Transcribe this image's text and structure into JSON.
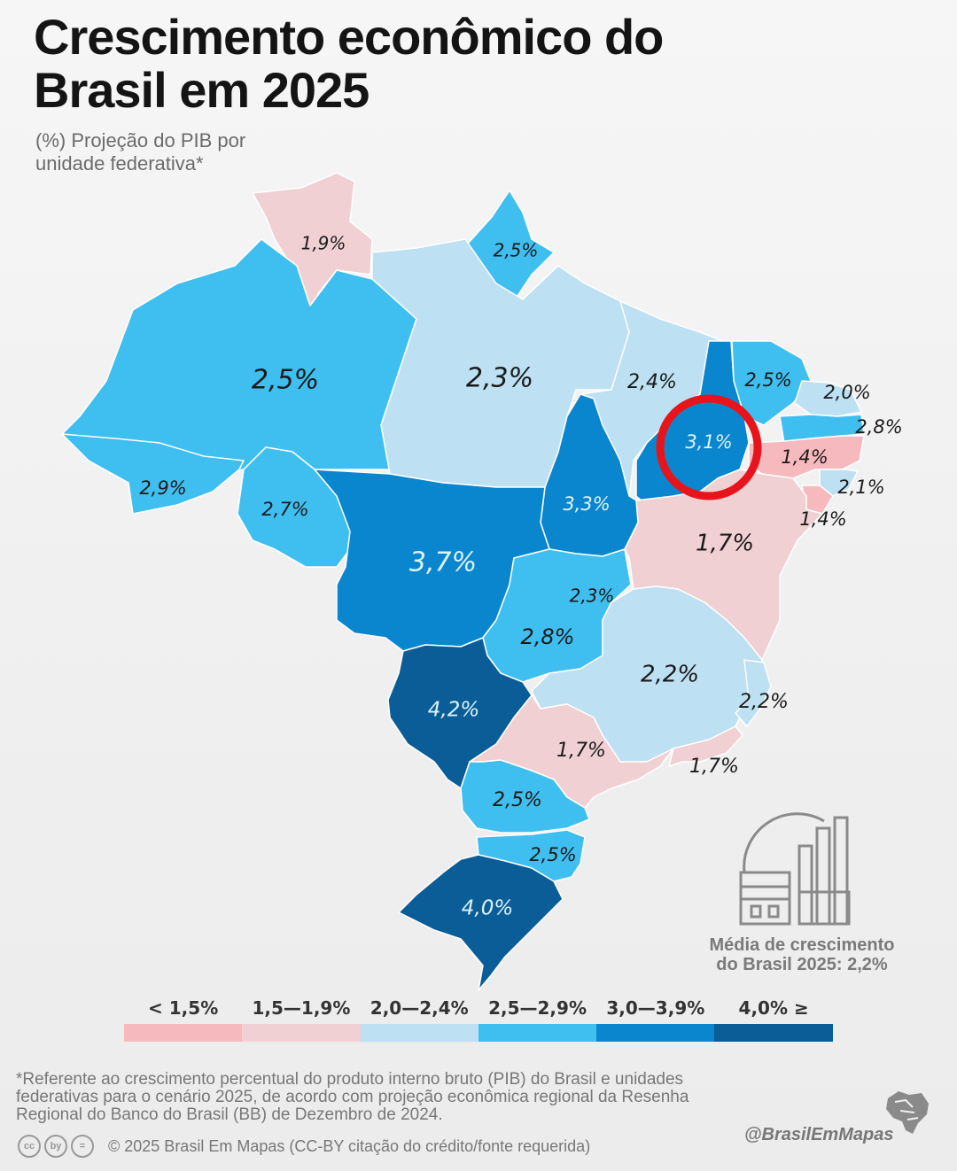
{
  "title": "Crescimento econômico do Brasil em 2025",
  "subtitle": "(%) Projeção do PIB por unidade federativa*",
  "states": [
    {
      "id": "RR",
      "label": "1,9%",
      "value": 1.9,
      "color": "#f0d0d3",
      "text_color": "#1a1a1a"
    },
    {
      "id": "AP",
      "label": "2,5%",
      "value": 2.5,
      "color": "#3fbef0",
      "text_color": "#1a1a1a"
    },
    {
      "id": "AM",
      "label": "2,5%",
      "value": 2.5,
      "color": "#3fbef0",
      "text_color": "#1a1a1a"
    },
    {
      "id": "PA",
      "label": "2,3%",
      "value": 2.3,
      "color": "#bde0f3",
      "text_color": "#1a1a1a"
    },
    {
      "id": "MA",
      "label": "2,4%",
      "value": 2.4,
      "color": "#bde0f3",
      "text_color": "#1a1a1a"
    },
    {
      "id": "CE",
      "label": "2,5%",
      "value": 2.5,
      "color": "#3fbef0",
      "text_color": "#1a1a1a"
    },
    {
      "id": "RN",
      "label": "2,0%",
      "value": 2.0,
      "color": "#bde0f3",
      "text_color": "#1a1a1a"
    },
    {
      "id": "PB",
      "label": "2,8%",
      "value": 2.8,
      "color": "#3fbef0",
      "text_color": "#1a1a1a"
    },
    {
      "id": "PI",
      "label": "3,1%",
      "value": 3.1,
      "color": "#0a86cf",
      "text_color": "#dff3fd"
    },
    {
      "id": "PE",
      "label": "1,4%",
      "value": 1.4,
      "color": "#f6b9bd",
      "text_color": "#1a1a1a"
    },
    {
      "id": "AL",
      "label": "2,1%",
      "value": 2.1,
      "color": "#bde0f3",
      "text_color": "#1a1a1a"
    },
    {
      "id": "SE",
      "label": "1,4%",
      "value": 1.4,
      "color": "#f6b9bd",
      "text_color": "#1a1a1a"
    },
    {
      "id": "AC",
      "label": "2,9%",
      "value": 2.9,
      "color": "#3fbef0",
      "text_color": "#1a1a1a"
    },
    {
      "id": "RO",
      "label": "2,7%",
      "value": 2.7,
      "color": "#3fbef0",
      "text_color": "#1a1a1a"
    },
    {
      "id": "TO",
      "label": "3,3%",
      "value": 3.3,
      "color": "#0a86cf",
      "text_color": "#dff3fd"
    },
    {
      "id": "BA",
      "label": "1,7%",
      "value": 1.7,
      "color": "#f0d0d3",
      "text_color": "#1a1a1a"
    },
    {
      "id": "MT",
      "label": "3,7%",
      "value": 3.7,
      "color": "#0a86cf",
      "text_color": "#dff3fd"
    },
    {
      "id": "DF",
      "label": "2,3%",
      "value": 2.3,
      "color": "#bde0f3",
      "text_color": "#1a1a1a"
    },
    {
      "id": "GO",
      "label": "2,8%",
      "value": 2.8,
      "color": "#3fbef0",
      "text_color": "#1a1a1a"
    },
    {
      "id": "MG",
      "label": "2,2%",
      "value": 2.2,
      "color": "#bde0f3",
      "text_color": "#1a1a1a"
    },
    {
      "id": "ES",
      "label": "2,2%",
      "value": 2.2,
      "color": "#bde0f3",
      "text_color": "#1a1a1a"
    },
    {
      "id": "MS",
      "label": "4,2%",
      "value": 4.2,
      "color": "#0a5d96",
      "text_color": "#dff3fd"
    },
    {
      "id": "SP",
      "label": "1,7%",
      "value": 1.7,
      "color": "#f0d0d3",
      "text_color": "#1a1a1a"
    },
    {
      "id": "RJ",
      "label": "1,7%",
      "value": 1.7,
      "color": "#f0d0d3",
      "text_color": "#1a1a1a"
    },
    {
      "id": "PR",
      "label": "2,5%",
      "value": 2.5,
      "color": "#3fbef0",
      "text_color": "#1a1a1a"
    },
    {
      "id": "SC",
      "label": "2,5%",
      "value": 2.5,
      "color": "#3fbef0",
      "text_color": "#1a1a1a"
    },
    {
      "id": "RS",
      "label": "4,0%",
      "value": 4.0,
      "color": "#0a5d96",
      "text_color": "#dff3fd"
    }
  ],
  "highlight": {
    "state": "PI",
    "color": "#e8141b"
  },
  "legend": [
    {
      "label": "< 1,5%",
      "color": "#f6b9bd"
    },
    {
      "label": "1,5—1,9%",
      "color": "#f0d0d3"
    },
    {
      "label": "2,0—2,4%",
      "color": "#bde0f3"
    },
    {
      "label": "2,5—2,9%",
      "color": "#3fbef0"
    },
    {
      "label": "3,0—3,9%",
      "color": "#0a86cf"
    },
    {
      "label": "4,0% ≥",
      "color": "#0a5d96"
    }
  ],
  "average": {
    "line1": "Média de crescimento",
    "line2": "do Brasil 2025: 2,2%",
    "icon": "city-industry-icon"
  },
  "footnote": "*Referente ao crescimento percentual do produto interno bruto (PIB) do Brasil e unidades federativas para o cenário 2025, de acordo com projeção econômica regional da Resenha Regional do Banco do Brasil (BB) de Dezembro de 2024.",
  "license": {
    "icons": [
      "cc",
      "by",
      "="
    ],
    "text": "© 2025  Brasil Em Mapas (CC-BY citação do crédito/fonte requerida)"
  },
  "handle": "@BrasilEmMapas",
  "brand_icon": "brazil-map-icon"
}
